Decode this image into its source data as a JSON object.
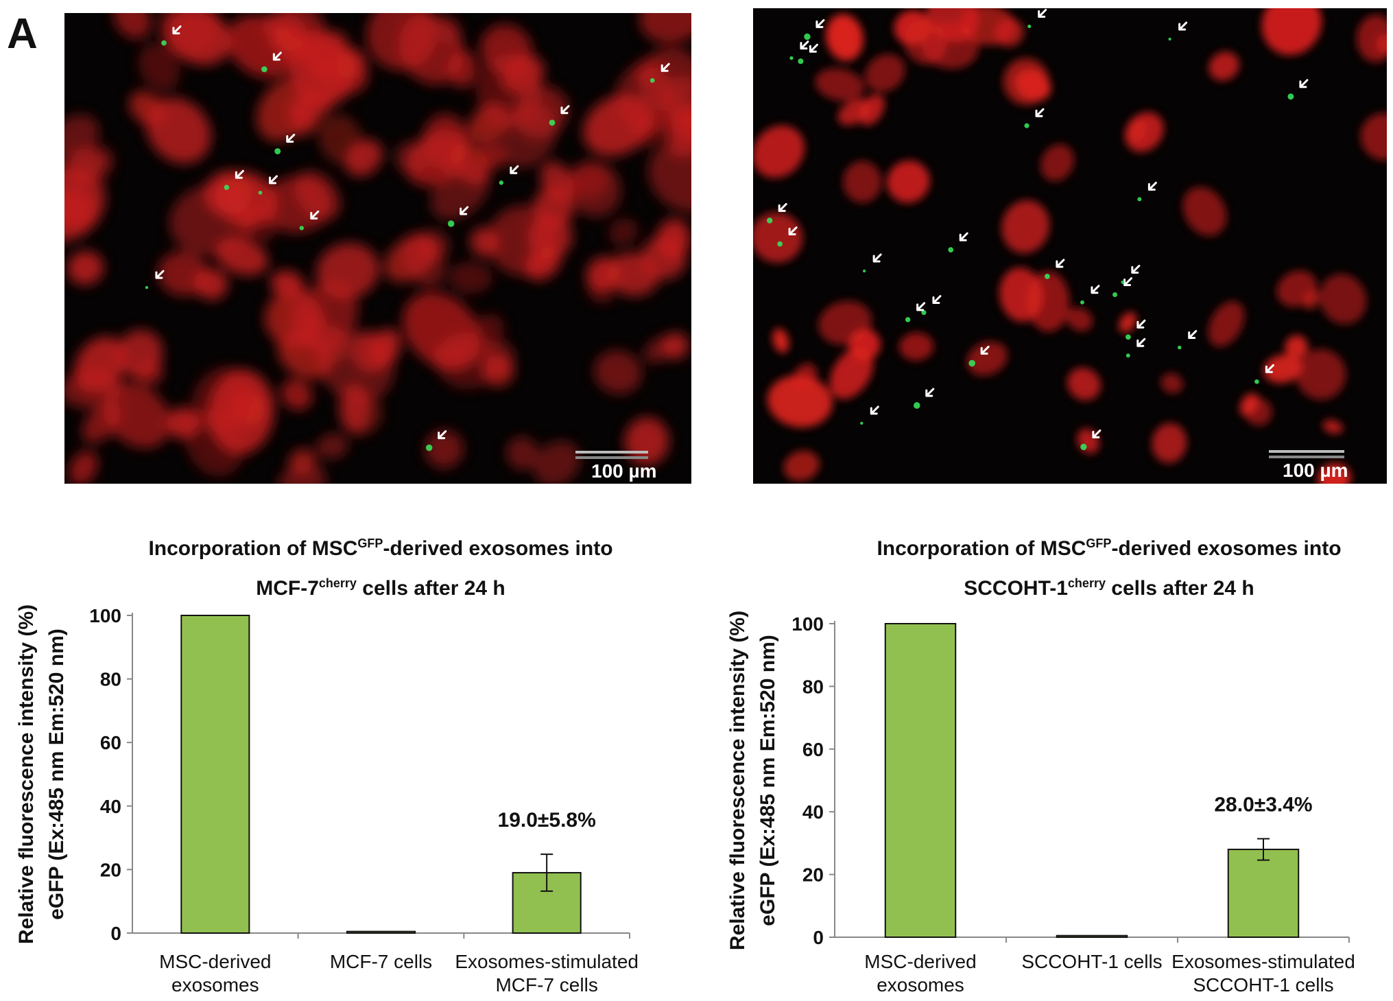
{
  "figure": {
    "panel_label": "A"
  },
  "images": [
    {
      "name": "MCF-7 cherry fluorescence micrograph",
      "scale_bar_label": "100 µm",
      "colors": {
        "cells": "#c8201f",
        "exosomes": "#36e05a",
        "background": "#050303"
      }
    },
    {
      "name": "SCCOHT-1 cherry fluorescence micrograph",
      "scale_bar_label": "100 µm",
      "colors": {
        "cells": "#d8211f",
        "exosomes": "#36e05a",
        "background": "#050303"
      }
    }
  ],
  "chart_data": [
    {
      "type": "bar",
      "title": {
        "line1_pre": "Incorporation of MSC",
        "line1_sup": "GFP",
        "line1_post": "-derived exosomes into",
        "line2_pre": "MCF-7",
        "line2_sup": "cherry",
        "line2_post": " cells after 24 h"
      },
      "ylabel": [
        "Relative fluorescence intensity (%)",
        "eGFP (Ex:485 nm Em:520 nm)"
      ],
      "categories": [
        [
          "MSC-derived",
          "exosomes"
        ],
        [
          "MCF-7 cells"
        ],
        [
          "Exosomes-stimulated",
          "MCF-7 cells"
        ]
      ],
      "values": [
        100,
        0.5,
        19.0
      ],
      "errors": [
        0,
        0,
        5.8
      ],
      "annotations": [
        null,
        null,
        "19.0±5.8%"
      ],
      "ylim": [
        0,
        100
      ],
      "yticks": [
        "0",
        "20",
        "40",
        "60",
        "80",
        "100"
      ],
      "bar_color": "#92c050",
      "grid": false
    },
    {
      "type": "bar",
      "title": {
        "line1_pre": "Incorporation of MSC",
        "line1_sup": "GFP",
        "line1_post": "-derived exosomes into",
        "line2_pre": "SCCOHT-1",
        "line2_sup": "cherry",
        "line2_post": " cells after 24 h"
      },
      "ylabel": [
        "Relative fluorescence intensity (%)",
        "eGFP (Ex:485 nm Em:520 nm)"
      ],
      "categories": [
        [
          "MSC-derived",
          "exosomes"
        ],
        [
          "SCCOHT-1 cells"
        ],
        [
          "Exosomes-stimulated",
          "SCCOHT-1 cells"
        ]
      ],
      "values": [
        100,
        0.5,
        28.0
      ],
      "errors": [
        0,
        0,
        3.4
      ],
      "annotations": [
        null,
        null,
        "28.0±3.4%"
      ],
      "ylim": [
        0,
        100
      ],
      "yticks": [
        "0",
        "20",
        "40",
        "60",
        "80",
        "100"
      ],
      "bar_color": "#92c050",
      "grid": false
    }
  ]
}
